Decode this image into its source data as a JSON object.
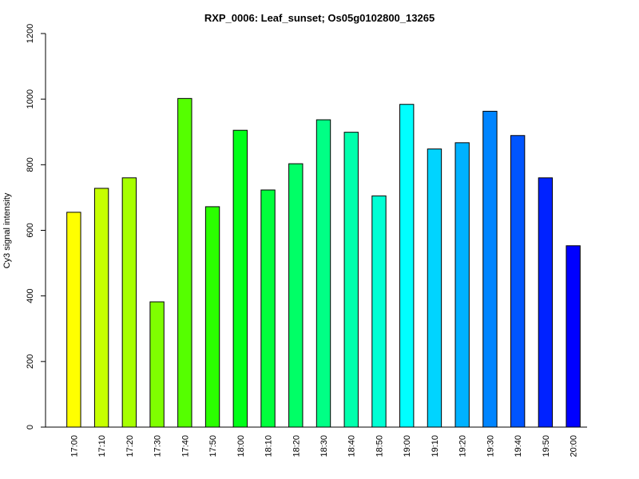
{
  "chart_data": {
    "type": "bar",
    "title": "RXP_0006: Leaf_sunset; Os05g0102800_13265",
    "xlabel": "",
    "ylabel": "Cy3 signal intensity",
    "ylim": [
      0,
      1200
    ],
    "yticks": [
      0,
      200,
      400,
      600,
      800,
      1000,
      1200
    ],
    "grid": false,
    "legend": "none",
    "categories": [
      "17:00",
      "17:10",
      "17:20",
      "17:30",
      "17:40",
      "17:50",
      "18:00",
      "18:10",
      "18:20",
      "18:30",
      "18:40",
      "18:50",
      "19:00",
      "19:10",
      "19:20",
      "19:30",
      "19:40",
      "19:50",
      "20:00"
    ],
    "values": [
      655,
      728,
      760,
      382,
      1002,
      672,
      905,
      723,
      803,
      937,
      899,
      705,
      984,
      848,
      867,
      963,
      889,
      760,
      553
    ],
    "colors": [
      "#FFFF00",
      "#C6FF00",
      "#A6FF00",
      "#7FFF00",
      "#55FF00",
      "#2BFF00",
      "#00FF18",
      "#00FF3C",
      "#00FF66",
      "#00FF85",
      "#00FFAC",
      "#00FFD4",
      "#00FFFF",
      "#00D4FF",
      "#00B2FF",
      "#0085FF",
      "#0055FF",
      "#0022FF",
      "#0000FF"
    ]
  }
}
